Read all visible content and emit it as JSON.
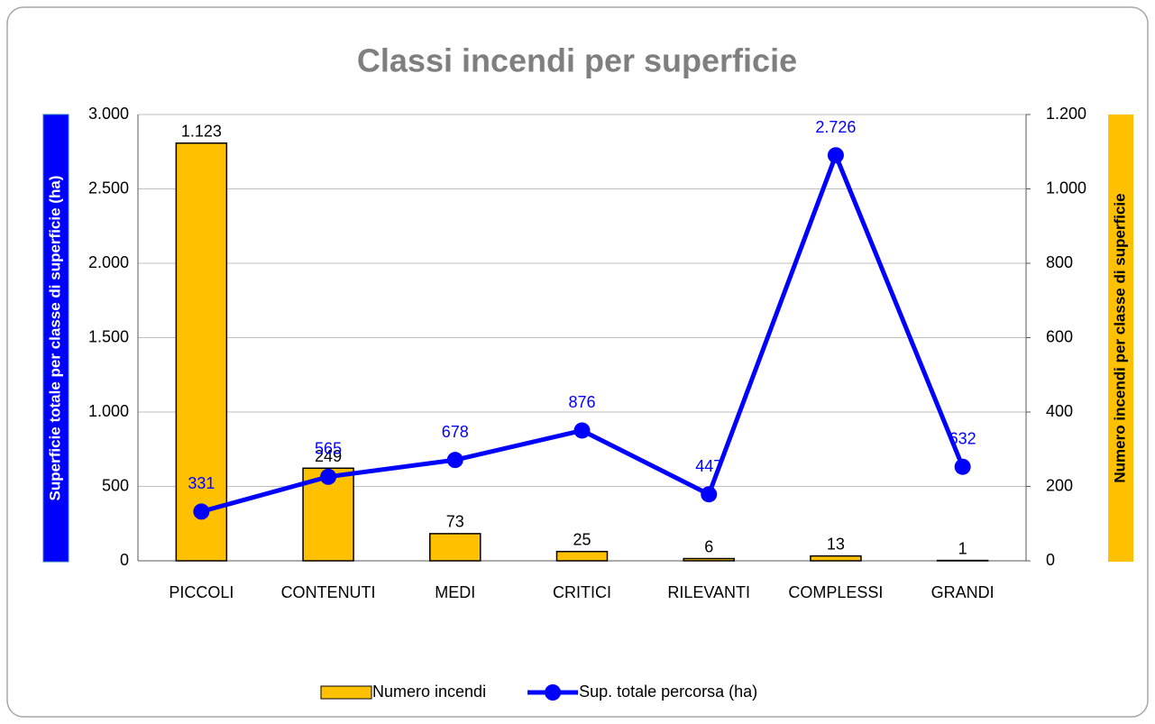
{
  "chart_data": {
    "type": "bar_line",
    "title": "Classi incendi per superficie",
    "y_label": "Superficie  totale per classe di superficie (ha)",
    "y2_label": "Numero incendi per classe di superficie",
    "categories": [
      "PICCOLI",
      "CONTENUTI",
      "MEDI",
      "CRITICI",
      "RILEVANTI",
      "COMPLESSI",
      "GRANDI"
    ],
    "series": [
      {
        "name": "Numero incendi",
        "type": "bar",
        "axis": "y2",
        "color": "#ffc000",
        "values": [
          1123,
          249,
          73,
          25,
          6,
          13,
          1
        ],
        "value_labels": [
          "1.123",
          "249",
          "73",
          "25",
          "6",
          "13",
          "1"
        ]
      },
      {
        "name": "Sup. totale percorsa (ha)",
        "type": "line",
        "axis": "y",
        "color": "#0000ff",
        "values": [
          331,
          565,
          678,
          876,
          447,
          2726,
          632
        ],
        "value_labels": [
          "331",
          "565",
          "678",
          "876",
          "447",
          "2.726",
          "632"
        ]
      }
    ],
    "ylim": [
      0,
      3000
    ],
    "yticks": [
      0,
      500,
      {
        "value": 1000,
        "label": "1.000"
      },
      {
        "value": 1500,
        "label": "1.500"
      },
      {
        "value": 2000,
        "label": "2.000"
      },
      {
        "value": 2500,
        "label": "2.500"
      },
      {
        "value": 3000,
        "label": "3.000"
      }
    ],
    "y2lim": [
      0,
      1200
    ],
    "y2ticks": [
      0,
      200,
      400,
      600,
      800,
      {
        "value": 1000,
        "label": "1.000"
      },
      {
        "value": 1200,
        "label": "1.200"
      }
    ],
    "grid": true,
    "legend": "bottom"
  }
}
